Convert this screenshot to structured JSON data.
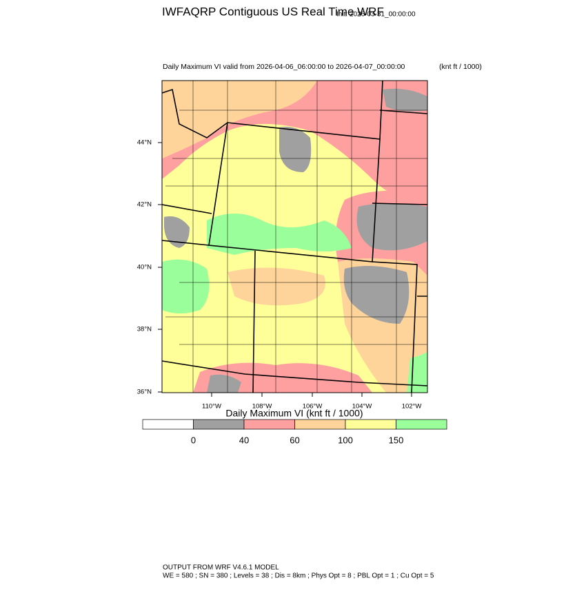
{
  "title": "IWFAQRP Contiguous US Real Time WRF",
  "init": "Init: 2026-03-31_00:00:00",
  "subtitle": "Daily Maximum VI valid from 2026-04-06_06:00:00 to 2026-04-07_00:00:00",
  "units": "(knt ft / 1000)",
  "lat_labels": [
    "44°N",
    "42°N",
    "40°N",
    "38°N",
    "36°N"
  ],
  "lon_labels": [
    "110°W",
    "108°W",
    "106°W",
    "104°W",
    "102°W"
  ],
  "colorbar": {
    "title": "Daily Maximum VI  (knt ft / 1000)",
    "colors": [
      "#ffffff",
      "#a0a0a0",
      "#ffa0a0",
      "#ffd49a",
      "#ffff9a",
      "#9aff9a"
    ],
    "ticks": [
      0,
      40,
      60,
      100,
      150
    ]
  },
  "footer": [
    "OUTPUT FROM WRF V4.6.1 MODEL",
    "WE = 580 ; SN = 380 ; Levels = 38 ; Dis = 8km ; Phys Opt = 8 ; PBL Opt = 1 ; Cu Opt = 5"
  ]
}
